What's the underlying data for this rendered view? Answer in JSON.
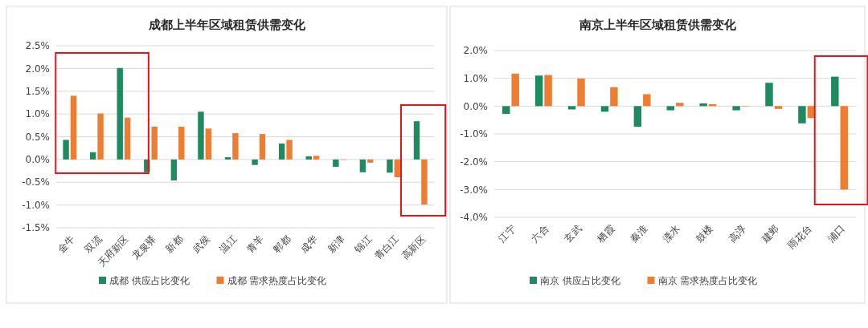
{
  "chart_data": [
    {
      "type": "bar",
      "title": "成都上半年区域租赁供需变化",
      "categories": [
        "金牛",
        "双流",
        "天府新区",
        "龙泉驿",
        "新都",
        "武侯",
        "温江",
        "青羊",
        "郫都",
        "成华",
        "新津",
        "锦江",
        "青白江",
        "高新区"
      ],
      "series": [
        {
          "name": "成都 供应占比变化",
          "color": "#1f8a5f",
          "values": [
            0.43,
            0.16,
            2.01,
            -0.28,
            -0.46,
            1.05,
            0.05,
            -0.12,
            0.35,
            0.07,
            -0.16,
            -0.28,
            -0.29,
            0.84
          ]
        },
        {
          "name": "成都 需求热度占比变化",
          "color": "#ed7d31",
          "values": [
            1.4,
            1.01,
            0.92,
            0.72,
            0.72,
            0.68,
            0.58,
            0.56,
            0.43,
            0.08,
            0,
            -0.07,
            -0.39,
            -0.99
          ]
        }
      ],
      "ylim": [
        -1.5,
        2.5
      ],
      "yticks": [
        {
          "value": -1.5,
          "label": "-1.5%"
        },
        {
          "value": -1,
          "label": "-1.0%"
        },
        {
          "value": -0.5,
          "label": "-0.5%"
        },
        {
          "value": 0,
          "label": "0.0%"
        },
        {
          "value": 0.5,
          "label": "0.5%"
        },
        {
          "value": 1,
          "label": "1.0%"
        },
        {
          "value": 1.5,
          "label": "1.5%"
        },
        {
          "value": 2,
          "label": "2.0%"
        },
        {
          "value": 2.5,
          "label": "2.5%"
        }
      ],
      "grid": "y",
      "legend": "bottom"
    },
    {
      "type": "bar",
      "title": "南京上半年区域租赁供需变化",
      "categories": [
        "江宁",
        "六合",
        "玄武",
        "栖霞",
        "秦淮",
        "溧水",
        "鼓楼",
        "高淳",
        "建邺",
        "雨花台",
        "浦口"
      ],
      "series": [
        {
          "name": "南京 供应占比变化",
          "color": "#1f8a5f",
          "values": [
            -0.28,
            1.1,
            -0.12,
            -0.2,
            -0.74,
            -0.15,
            0.1,
            -0.15,
            0.84,
            -0.62,
            1.06
          ]
        },
        {
          "name": "南京 需求热度占比变化",
          "color": "#ed7d31",
          "values": [
            1.17,
            1.12,
            0.99,
            0.68,
            0.43,
            0.12,
            0.07,
            0,
            -0.1,
            -0.43,
            -3.0
          ]
        }
      ],
      "ylim": [
        -4,
        2
      ],
      "yticks": [
        {
          "value": -4,
          "label": "-4.0%"
        },
        {
          "value": -3,
          "label": "-3.0%"
        },
        {
          "value": -2,
          "label": "-2.0%"
        },
        {
          "value": -1,
          "label": "-1.0%"
        },
        {
          "value": 0,
          "label": "0.0%"
        },
        {
          "value": 1,
          "label": "1.0%"
        },
        {
          "value": 2,
          "label": "2.0%"
        }
      ],
      "grid": "y",
      "legend": "bottom"
    }
  ]
}
